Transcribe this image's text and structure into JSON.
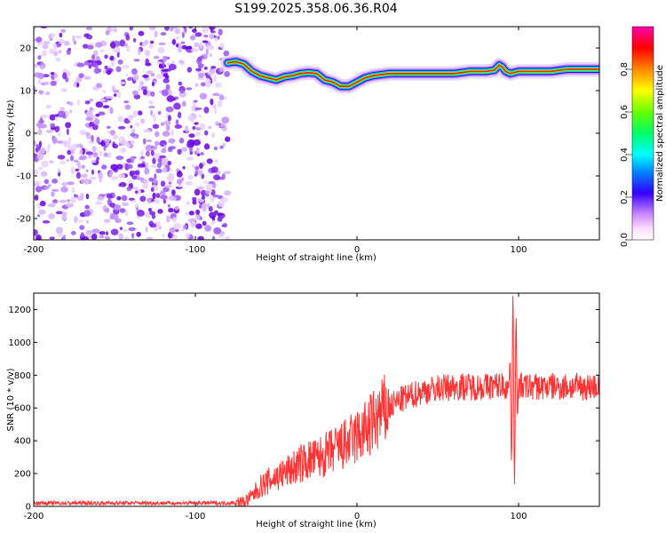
{
  "title": "S199.2025.358.06.36.R04",
  "chart_data": [
    {
      "type": "heatmap",
      "name": "spectrogram",
      "xlabel": "Height of straight line (km)",
      "ylabel": "Frequency (Hz)",
      "xlim": [
        -200,
        150
      ],
      "ylim": [
        -25,
        25
      ],
      "xticks": [
        -200,
        -100,
        0,
        100
      ],
      "yticks": [
        -20,
        -10,
        0,
        10,
        20
      ],
      "noise_region_x": [
        -200,
        -80
      ],
      "ridge": {
        "x": [
          -80,
          -75,
          -70,
          -65,
          -60,
          -55,
          -50,
          -45,
          -40,
          -35,
          -30,
          -25,
          -20,
          -15,
          -10,
          -5,
          0,
          5,
          10,
          20,
          40,
          60,
          70,
          80,
          85,
          88,
          90,
          92,
          95,
          100,
          110,
          120,
          130,
          150
        ],
        "freq_hz": [
          16.5,
          16.8,
          16.2,
          14.5,
          13.5,
          13.0,
          12.5,
          13.2,
          13.5,
          14.0,
          14.2,
          14.0,
          12.5,
          12.0,
          11.0,
          11.0,
          12.0,
          13.0,
          13.5,
          14.0,
          14.0,
          14.0,
          14.5,
          14.5,
          14.8,
          16.0,
          15.5,
          14.5,
          14.0,
          14.5,
          14.5,
          14.5,
          15.0,
          15.0
        ]
      },
      "colorbar": {
        "label": "Normalized spectral amplitude",
        "range": [
          0.0,
          1.0
        ],
        "ticks": [
          0.0,
          0.2,
          0.4,
          0.6,
          0.8
        ]
      }
    },
    {
      "type": "line",
      "name": "snr",
      "xlabel": "Height of straight line (km)",
      "ylabel": "SNR (10 * v/v)",
      "xlim": [
        -200,
        150
      ],
      "ylim": [
        0,
        1300
      ],
      "xticks": [
        -200,
        -100,
        0,
        100
      ],
      "yticks": [
        0,
        200,
        400,
        600,
        800,
        1000,
        1200
      ],
      "color": "#ff3333",
      "series": [
        {
          "name": "SNR",
          "x": [
            -200,
            -180,
            -160,
            -140,
            -120,
            -100,
            -80,
            -70,
            -65,
            -60,
            -55,
            -50,
            -45,
            -40,
            -35,
            -30,
            -25,
            -20,
            -15,
            -10,
            -5,
            0,
            5,
            10,
            15,
            20,
            25,
            30,
            40,
            50,
            60,
            70,
            80,
            90,
            94,
            96,
            98,
            100,
            105,
            110,
            120,
            130,
            140,
            150
          ],
          "values": [
            20,
            20,
            20,
            20,
            20,
            20,
            20,
            25,
            60,
            120,
            150,
            180,
            200,
            230,
            260,
            280,
            290,
            310,
            340,
            360,
            390,
            420,
            460,
            510,
            560,
            600,
            640,
            660,
            700,
            720,
            730,
            730,
            730,
            740,
            720,
            700,
            720,
            730,
            730,
            730,
            730,
            730,
            730,
            730
          ]
        }
      ]
    }
  ]
}
